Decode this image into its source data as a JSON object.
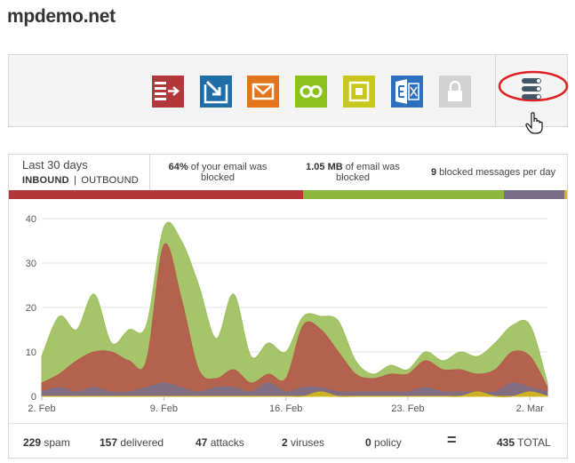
{
  "site": {
    "title": "mpdemo.net"
  },
  "toolbar": {
    "icons": [
      {
        "name": "inbound-icon",
        "color": "#b2383b"
      },
      {
        "name": "outbound-icon",
        "color": "#1f6ea8"
      },
      {
        "name": "mail-icon",
        "color": "#e2741c"
      },
      {
        "name": "continuity-icon",
        "color": "#8cc21c"
      },
      {
        "name": "archive-icon",
        "color": "#c8c81c"
      },
      {
        "name": "exchange-icon",
        "color": "#2f6fc0"
      },
      {
        "name": "encryption-lock-icon",
        "color": "#cfcfcf"
      }
    ],
    "menu_icon": "stacked-bars-menu-icon",
    "highlight_color": "#e02020"
  },
  "stats": {
    "period": "Last 30 days",
    "inbound_label": "INBOUND",
    "separator": "|",
    "outbound_label": "OUTBOUND",
    "blocked_pct": "64%",
    "blocked_pct_text": "of your email was",
    "blocked_pct_text2": "blocked",
    "blocked_size": "1.05 MB",
    "blocked_size_text": "of email was",
    "blocked_size_text2": "blocked",
    "blocked_per_day": "9",
    "blocked_per_day_text": "blocked messages per day",
    "summary_colors": {
      "red": "#b2383b",
      "green": "#8cb83e",
      "purple": "#776d87",
      "yellow": "#d4b81c"
    }
  },
  "chart_data": {
    "type": "area",
    "x_tick_labels": [
      "2. Feb",
      "9. Feb",
      "16. Feb",
      "23. Feb",
      "2. Mar"
    ],
    "y_ticks": [
      0,
      10,
      20,
      30,
      40
    ],
    "ylim": [
      0,
      40
    ],
    "grid": true,
    "days": 30,
    "series": [
      {
        "color": "#9cbf5a",
        "values": [
          9,
          18,
          15,
          23,
          12,
          15,
          16,
          38,
          35,
          25,
          13,
          23,
          9,
          12,
          10,
          18,
          18,
          17,
          8,
          5,
          7,
          6,
          10,
          8,
          10,
          9,
          12,
          16,
          16,
          3
        ]
      },
      {
        "color": "#b5584a",
        "values": [
          3,
          5,
          8,
          10,
          10,
          8,
          8,
          34,
          22,
          6,
          4,
          6,
          3,
          5,
          4,
          16,
          15,
          10,
          5,
          4,
          5,
          5,
          8,
          6,
          6,
          5,
          6,
          10,
          9,
          2
        ]
      },
      {
        "color": "#7c6e86",
        "values": [
          1,
          2,
          1,
          2,
          1,
          1,
          2,
          3,
          2,
          1,
          2,
          2,
          1,
          3,
          1,
          2,
          2,
          1,
          1,
          1,
          1,
          1,
          2,
          1,
          1,
          1,
          1,
          3,
          2,
          1
        ]
      },
      {
        "color": "#d4b81c",
        "values": [
          0,
          0,
          0,
          0,
          0,
          0,
          0,
          0,
          0,
          0,
          0,
          0,
          0,
          0,
          0,
          0,
          1,
          0,
          0,
          0,
          0,
          0,
          0,
          0,
          0,
          1,
          0,
          0,
          1,
          0
        ]
      }
    ]
  },
  "footer": {
    "spam_count": "229",
    "spam_label": "spam",
    "delivered_count": "157",
    "delivered_label": "delivered",
    "attacks_count": "47",
    "attacks_label": "attacks",
    "viruses_count": "2",
    "viruses_label": "viruses",
    "policy_count": "0",
    "policy_label": "policy",
    "equals": "=",
    "total_count": "435",
    "total_label": "TOTAL"
  }
}
